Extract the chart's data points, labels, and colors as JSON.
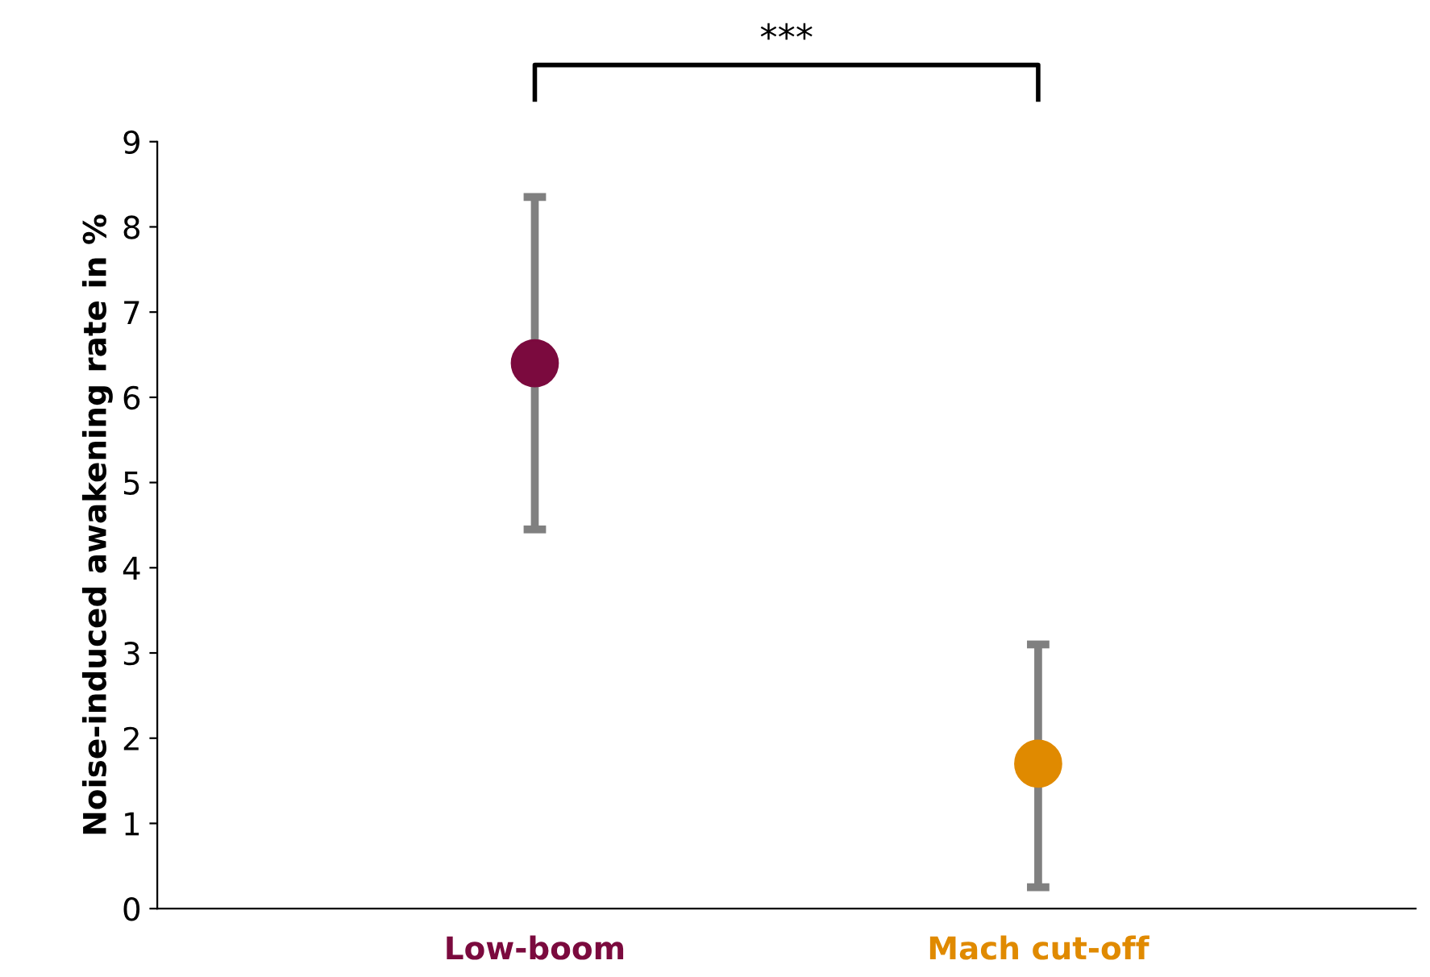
{
  "chart_data": {
    "type": "scatter",
    "ylabel": "Noise-induced awakening rate in %",
    "categories": [
      "Low-boom",
      "Mach cut-off"
    ],
    "values": [
      6.4,
      1.7
    ],
    "colors": [
      "#7b0a3e",
      "#e08a00"
    ],
    "errors": [
      [
        4.45,
        8.35
      ],
      [
        0.25,
        3.1
      ]
    ],
    "ylim": [
      0,
      9
    ],
    "yticks": [
      0,
      1,
      2,
      3,
      4,
      5,
      6,
      7,
      8,
      9
    ],
    "grid": false,
    "marker": "circle",
    "annotations": [
      "***"
    ]
  }
}
